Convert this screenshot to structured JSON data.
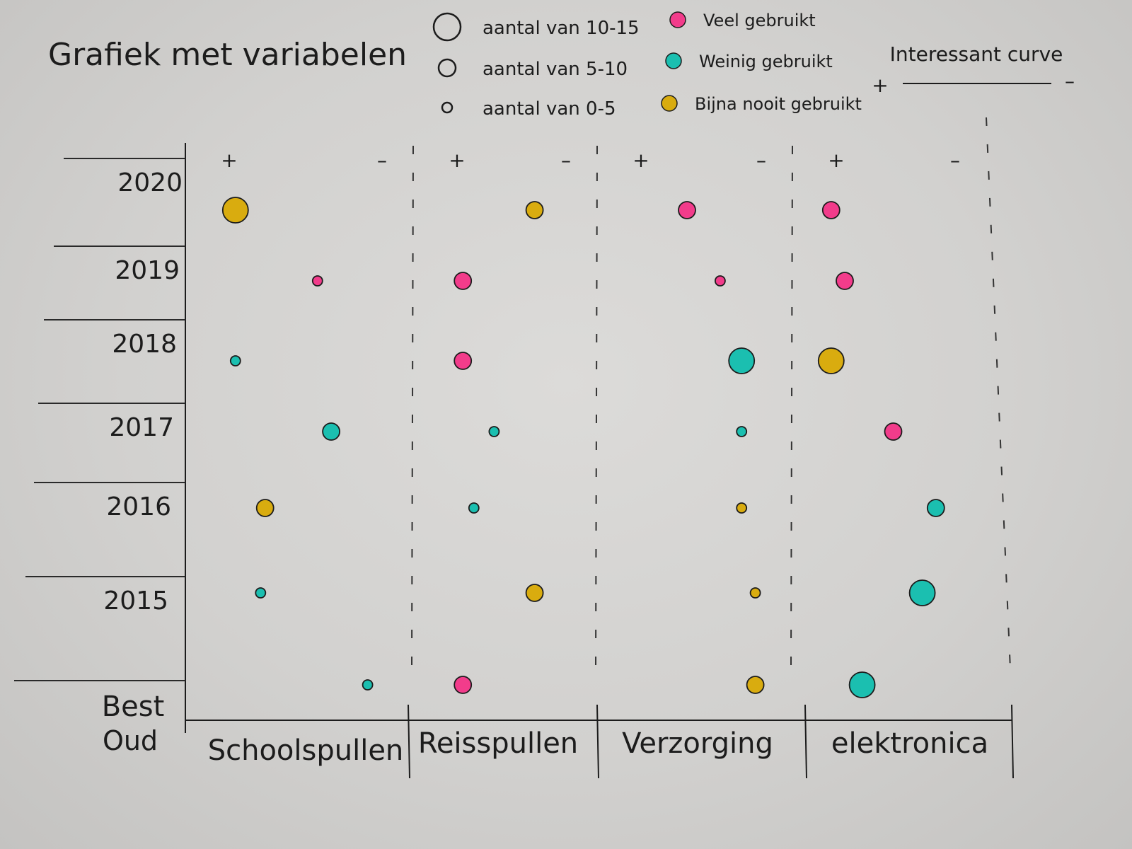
{
  "chart_data": {
    "type": "scatter",
    "title": "Grafiek met variabelen",
    "categories": [
      "Schoolspullen",
      "Reisspullen",
      "Verzorging",
      "elektronica"
    ],
    "y_labels": [
      "2020",
      "2019",
      "2018",
      "2017",
      "2016",
      "2015",
      "Best Oud"
    ],
    "scale_plus": "+",
    "scale_minus": "–",
    "legend_size": [
      {
        "label": "aantal van 10-15",
        "size": "large"
      },
      {
        "label": "aantal van 5-10",
        "size": "medium"
      },
      {
        "label": "aantal van 0-5",
        "size": "small"
      }
    ],
    "legend_color": [
      {
        "label": "Veel gebruikt",
        "color": "#f23c8b"
      },
      {
        "label": "Weinig gebruikt",
        "color": "#1bbfb0"
      },
      {
        "label": "Bijna nooit gebruikt",
        "color": "#d9ac0f"
      }
    ],
    "curve_legend": {
      "label": "Interessant curve",
      "plus": "+",
      "minus": "–"
    },
    "grid": false,
    "legend_position": "top",
    "points": [
      {
        "category": "Schoolspullen",
        "year": "2020",
        "position": 0.22,
        "size": "large",
        "usage": "Bijna nooit gebruikt"
      },
      {
        "category": "Schoolspullen",
        "year": "2019",
        "position": 0.58,
        "size": "small",
        "usage": "Veel gebruikt"
      },
      {
        "category": "Schoolspullen",
        "year": "2018",
        "position": 0.22,
        "size": "small",
        "usage": "Weinig gebruikt"
      },
      {
        "category": "Schoolspullen",
        "year": "2017",
        "position": 0.64,
        "size": "medium",
        "usage": "Weinig gebruikt"
      },
      {
        "category": "Schoolspullen",
        "year": "2016",
        "position": 0.35,
        "size": "medium",
        "usage": "Bijna nooit gebruikt"
      },
      {
        "category": "Schoolspullen",
        "year": "2015",
        "position": 0.33,
        "size": "small",
        "usage": "Weinig gebruikt"
      },
      {
        "category": "Schoolspullen",
        "year": "Best Oud",
        "position": 0.8,
        "size": "small",
        "usage": "Weinig gebruikt"
      },
      {
        "category": "Reisspullen",
        "year": "2020",
        "position": 0.66,
        "size": "medium",
        "usage": "Bijna nooit gebruikt"
      },
      {
        "category": "Reisspullen",
        "year": "2019",
        "position": 0.27,
        "size": "medium",
        "usage": "Veel gebruikt"
      },
      {
        "category": "Reisspullen",
        "year": "2018",
        "position": 0.27,
        "size": "medium",
        "usage": "Veel gebruikt"
      },
      {
        "category": "Reisspullen",
        "year": "2017",
        "position": 0.44,
        "size": "small",
        "usage": "Weinig gebruikt"
      },
      {
        "category": "Reisspullen",
        "year": "2016",
        "position": 0.33,
        "size": "small",
        "usage": "Weinig gebruikt"
      },
      {
        "category": "Reisspullen",
        "year": "2015",
        "position": 0.66,
        "size": "medium",
        "usage": "Bijna nooit gebruikt"
      },
      {
        "category": "Reisspullen",
        "year": "Best Oud",
        "position": 0.27,
        "size": "medium",
        "usage": "Veel gebruikt"
      },
      {
        "category": "Verzorging",
        "year": "2020",
        "position": 0.46,
        "size": "medium",
        "usage": "Veel gebruikt"
      },
      {
        "category": "Verzorging",
        "year": "2019",
        "position": 0.63,
        "size": "small",
        "usage": "Veel gebruikt"
      },
      {
        "category": "Verzorging",
        "year": "2018",
        "position": 0.74,
        "size": "large",
        "usage": "Weinig gebruikt"
      },
      {
        "category": "Verzorging",
        "year": "2017",
        "position": 0.74,
        "size": "small",
        "usage": "Weinig gebruikt"
      },
      {
        "category": "Verzorging",
        "year": "2016",
        "position": 0.74,
        "size": "small",
        "usage": "Bijna nooit gebruikt"
      },
      {
        "category": "Verzorging",
        "year": "2015",
        "position": 0.81,
        "size": "small",
        "usage": "Bijna nooit gebruikt"
      },
      {
        "category": "Verzorging",
        "year": "Best Oud",
        "position": 0.81,
        "size": "medium",
        "usage": "Bijna nooit gebruikt"
      },
      {
        "category": "elektronica",
        "year": "2020",
        "position": 0.2,
        "size": "medium",
        "usage": "Veel gebruikt"
      },
      {
        "category": "elektronica",
        "year": "2019",
        "position": 0.27,
        "size": "medium",
        "usage": "Veel gebruikt"
      },
      {
        "category": "elektronica",
        "year": "2018",
        "position": 0.2,
        "size": "large",
        "usage": "Bijna nooit gebruikt"
      },
      {
        "category": "elektronica",
        "year": "2017",
        "position": 0.52,
        "size": "medium",
        "usage": "Veel gebruikt"
      },
      {
        "category": "elektronica",
        "year": "2016",
        "position": 0.74,
        "size": "medium",
        "usage": "Weinig gebruikt"
      },
      {
        "category": "elektronica",
        "year": "2015",
        "position": 0.67,
        "size": "large",
        "usage": "Weinig gebruikt"
      },
      {
        "category": "elektronica",
        "year": "Best Oud",
        "position": 0.36,
        "size": "large",
        "usage": "Weinig gebruikt"
      }
    ]
  }
}
